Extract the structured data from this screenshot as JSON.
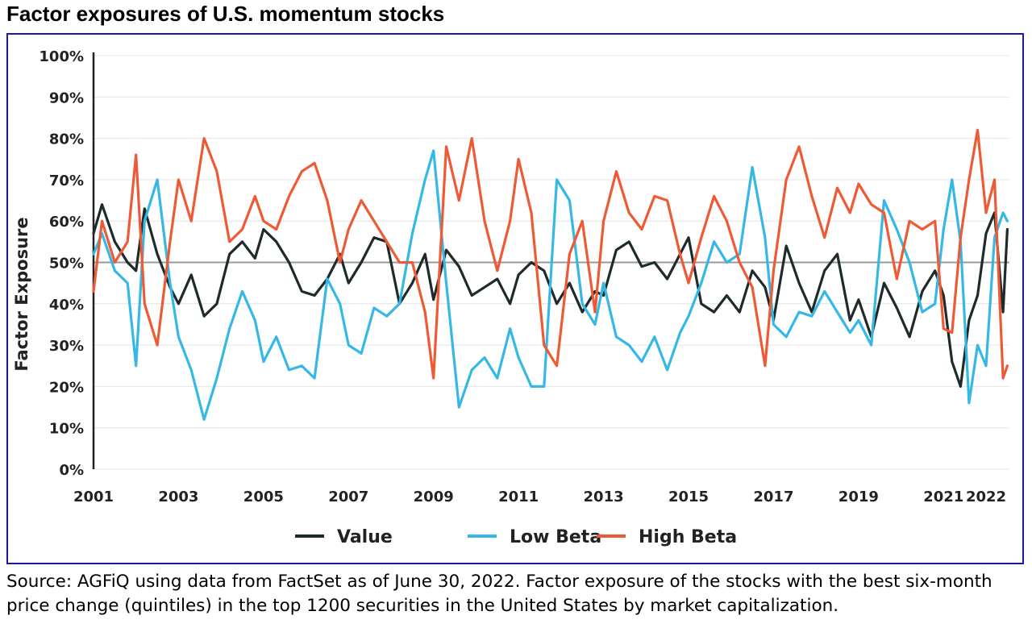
{
  "page_title": "Factor exposures of U.S. momentum stocks",
  "source_note": "Source: AGFiQ using data from FactSet as of June 30, 2022. Factor exposure of the stocks with the best six-month price change (quintiles) in the top 1200 securities in the United States by market capitalization.",
  "colors": {
    "value": "#1f2b2b",
    "low_beta": "#36b8e6",
    "high_beta": "#ee5a36",
    "grid": "#e4e4e4",
    "axis": "#222222",
    "ref_line": "#9a9a9a",
    "frame": "#1a1aa6"
  },
  "chart_data": {
    "type": "line",
    "ylabel": "Factor Exposure",
    "xlabel": "",
    "ylim": [
      0,
      100
    ],
    "xlim": [
      2001,
      2022.55
    ],
    "y_ticks": [
      0,
      10,
      20,
      30,
      40,
      50,
      60,
      70,
      80,
      90,
      100
    ],
    "y_tick_labels": [
      "0%",
      "10%",
      "20%",
      "30%",
      "40%",
      "50%",
      "60%",
      "70%",
      "80%",
      "90%",
      "100%"
    ],
    "x_ticks": [
      2001,
      2003,
      2005,
      2007,
      2009,
      2011,
      2013,
      2015,
      2017,
      2019,
      2021,
      2022
    ],
    "x_tick_labels": [
      "2001",
      "2003",
      "2005",
      "2007",
      "2009",
      "2011",
      "2013",
      "2015",
      "2017",
      "2019",
      "2021",
      "2022"
    ],
    "reference_line": 50,
    "grid": true,
    "legend_position": "bottom",
    "series": [
      {
        "name": "Value",
        "color": "#1f2b2b",
        "x": [
          2001,
          2001.2,
          2001.5,
          2001.8,
          2002.0,
          2002.2,
          2002.5,
          2002.8,
          2003.0,
          2003.3,
          2003.6,
          2003.9,
          2004.2,
          2004.5,
          2004.8,
          2005.0,
          2005.3,
          2005.6,
          2005.9,
          2006.2,
          2006.5,
          2006.8,
          2007.0,
          2007.3,
          2007.6,
          2007.9,
          2008.2,
          2008.5,
          2008.8,
          2009.0,
          2009.3,
          2009.6,
          2009.9,
          2010.2,
          2010.5,
          2010.8,
          2011.0,
          2011.3,
          2011.6,
          2011.9,
          2012.2,
          2012.5,
          2012.8,
          2013.0,
          2013.3,
          2013.6,
          2013.9,
          2014.2,
          2014.5,
          2014.8,
          2015.0,
          2015.3,
          2015.6,
          2015.9,
          2016.2,
          2016.5,
          2016.8,
          2017.0,
          2017.3,
          2017.6,
          2017.9,
          2018.2,
          2018.5,
          2018.8,
          2019.0,
          2019.3,
          2019.6,
          2019.9,
          2020.2,
          2020.5,
          2020.8,
          2021.0,
          2021.2,
          2021.4,
          2021.6,
          2021.8,
          2022.0,
          2022.2,
          2022.4,
          2022.5
        ],
        "values": [
          57,
          64,
          55,
          50,
          48,
          63,
          52,
          44,
          40,
          47,
          37,
          40,
          52,
          55,
          51,
          58,
          55,
          50,
          43,
          42,
          46,
          52,
          45,
          50,
          56,
          55,
          40,
          45,
          52,
          41,
          53,
          49,
          42,
          44,
          46,
          40,
          47,
          50,
          48,
          40,
          45,
          38,
          43,
          42,
          53,
          55,
          49,
          50,
          46,
          52,
          56,
          40,
          38,
          42,
          38,
          48,
          44,
          36,
          54,
          45,
          38,
          48,
          52,
          36,
          41,
          32,
          45,
          39,
          32,
          43,
          48,
          42,
          26,
          20,
          36,
          42,
          57,
          62,
          38,
          58
        ]
      },
      {
        "name": "Low Beta",
        "color": "#36b8e6",
        "x": [
          2001,
          2001.2,
          2001.5,
          2001.8,
          2002.0,
          2002.2,
          2002.5,
          2002.8,
          2003.0,
          2003.3,
          2003.6,
          2003.9,
          2004.2,
          2004.5,
          2004.8,
          2005.0,
          2005.3,
          2005.6,
          2005.9,
          2006.2,
          2006.5,
          2006.8,
          2007.0,
          2007.3,
          2007.6,
          2007.9,
          2008.2,
          2008.5,
          2008.8,
          2009.0,
          2009.3,
          2009.6,
          2009.9,
          2010.2,
          2010.5,
          2010.8,
          2011.0,
          2011.3,
          2011.6,
          2011.9,
          2012.2,
          2012.5,
          2012.8,
          2013.0,
          2013.3,
          2013.6,
          2013.9,
          2014.2,
          2014.5,
          2014.8,
          2015.0,
          2015.3,
          2015.6,
          2015.9,
          2016.2,
          2016.5,
          2016.8,
          2017.0,
          2017.3,
          2017.6,
          2017.9,
          2018.2,
          2018.5,
          2018.8,
          2019.0,
          2019.3,
          2019.6,
          2019.9,
          2020.2,
          2020.5,
          2020.8,
          2021.0,
          2021.2,
          2021.4,
          2021.6,
          2021.8,
          2022.0,
          2022.2,
          2022.4,
          2022.5
        ],
        "values": [
          52,
          57,
          48,
          45,
          25,
          60,
          70,
          45,
          32,
          24,
          12,
          22,
          34,
          43,
          36,
          26,
          32,
          24,
          25,
          22,
          46,
          40,
          30,
          28,
          39,
          37,
          40,
          57,
          70,
          77,
          45,
          15,
          24,
          27,
          22,
          34,
          27,
          20,
          20,
          70,
          65,
          40,
          35,
          45,
          32,
          30,
          26,
          32,
          24,
          33,
          37,
          45,
          55,
          50,
          52,
          73,
          56,
          35,
          32,
          38,
          37,
          43,
          38,
          33,
          36,
          30,
          65,
          58,
          50,
          38,
          40,
          58,
          70,
          55,
          16,
          30,
          25,
          56,
          62,
          60
        ]
      },
      {
        "name": "High Beta",
        "color": "#ee5a36",
        "x": [
          2001,
          2001.2,
          2001.5,
          2001.8,
          2002.0,
          2002.2,
          2002.5,
          2002.8,
          2003.0,
          2003.3,
          2003.6,
          2003.9,
          2004.2,
          2004.5,
          2004.8,
          2005.0,
          2005.3,
          2005.6,
          2005.9,
          2006.2,
          2006.5,
          2006.8,
          2007.0,
          2007.3,
          2007.6,
          2007.9,
          2008.2,
          2008.5,
          2008.8,
          2009.0,
          2009.3,
          2009.6,
          2009.9,
          2010.2,
          2010.5,
          2010.8,
          2011.0,
          2011.3,
          2011.6,
          2011.9,
          2012.2,
          2012.5,
          2012.8,
          2013.0,
          2013.3,
          2013.6,
          2013.9,
          2014.2,
          2014.5,
          2014.8,
          2015.0,
          2015.3,
          2015.6,
          2015.9,
          2016.2,
          2016.5,
          2016.8,
          2017.0,
          2017.3,
          2017.6,
          2017.9,
          2018.2,
          2018.5,
          2018.8,
          2019.0,
          2019.3,
          2019.6,
          2019.9,
          2020.2,
          2020.5,
          2020.8,
          2021.0,
          2021.2,
          2021.4,
          2021.6,
          2021.8,
          2022.0,
          2022.2,
          2022.4,
          2022.5
        ],
        "values": [
          43,
          60,
          50,
          55,
          76,
          40,
          30,
          55,
          70,
          60,
          80,
          72,
          55,
          58,
          66,
          60,
          58,
          66,
          72,
          74,
          65,
          50,
          58,
          65,
          60,
          55,
          50,
          50,
          38,
          22,
          78,
          65,
          80,
          60,
          48,
          60,
          75,
          62,
          30,
          25,
          52,
          60,
          38,
          60,
          72,
          62,
          58,
          66,
          65,
          52,
          45,
          56,
          66,
          60,
          50,
          44,
          25,
          48,
          70,
          78,
          66,
          56,
          68,
          62,
          69,
          64,
          62,
          46,
          60,
          58,
          60,
          34,
          33,
          56,
          70,
          82,
          62,
          70,
          22,
          25
        ]
      }
    ]
  },
  "legend": [
    {
      "label": "Value",
      "color": "#1f2b2b"
    },
    {
      "label": "Low Beta",
      "color": "#36b8e6"
    },
    {
      "label": "High Beta",
      "color": "#ee5a36"
    }
  ]
}
